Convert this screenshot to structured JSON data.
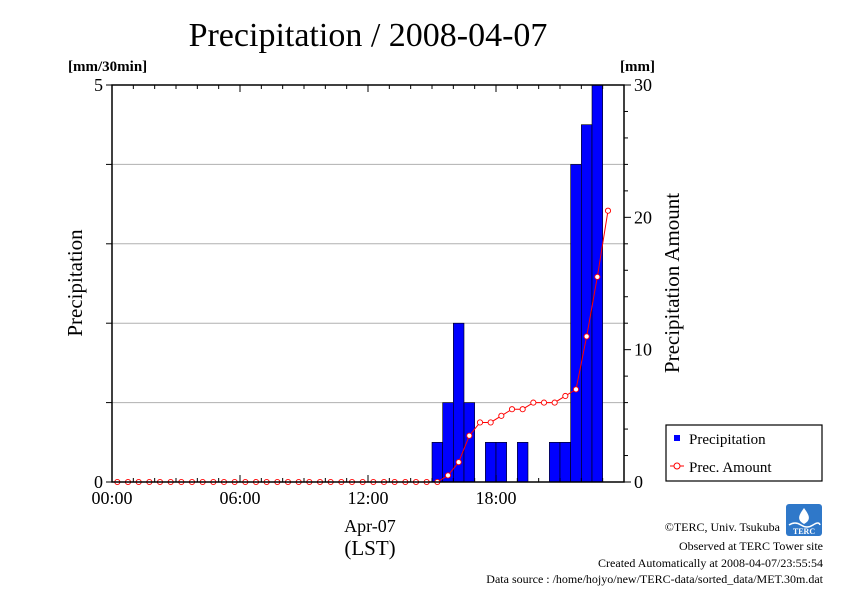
{
  "chart_data": {
    "type": "bar",
    "title": "Precipitation / 2008-04-07",
    "left_unit": "[mm/30min]",
    "right_unit": "[mm]",
    "ylabel": "Precipitation",
    "y2label": "Precipitation Amount",
    "xlabel_date": "Apr-07",
    "xlabel_tz": "(LST)",
    "ylim": [
      0,
      5
    ],
    "y2lim": [
      0,
      30
    ],
    "xlim_hours": [
      0,
      24
    ],
    "y_ticks": [
      "0",
      "5"
    ],
    "y2_ticks": [
      "0",
      "10",
      "20",
      "30"
    ],
    "x_ticks": [
      "00:00",
      "06:00",
      "12:00",
      "18:00"
    ],
    "grid": true,
    "legend_position": "bottom-right",
    "bar_color": "#0000ff",
    "line_color": "#ff0000",
    "x_hours": [
      0,
      0.5,
      1,
      1.5,
      2,
      2.5,
      3,
      3.5,
      4,
      4.5,
      5,
      5.5,
      6,
      6.5,
      7,
      7.5,
      8,
      8.5,
      9,
      9.5,
      10,
      10.5,
      11,
      11.5,
      12,
      12.5,
      13,
      13.5,
      14,
      14.5,
      15,
      15.5,
      16,
      16.5,
      17,
      17.5,
      18,
      18.5,
      19,
      19.5,
      20,
      20.5,
      21,
      21.5,
      22,
      22.5,
      23
    ],
    "series": [
      {
        "name": "Precipitation",
        "kind": "bar",
        "values": [
          0,
          0,
          0,
          0,
          0,
          0,
          0,
          0,
          0,
          0,
          0,
          0,
          0,
          0,
          0,
          0,
          0,
          0,
          0,
          0,
          0,
          0,
          0,
          0,
          0,
          0,
          0,
          0,
          0,
          0,
          0.5,
          1,
          2,
          1,
          0,
          0.5,
          0.5,
          0,
          0.5,
          0,
          0,
          0.5,
          0.5,
          4,
          4.5,
          5,
          0
        ]
      },
      {
        "name": "Prec. Amount",
        "kind": "line",
        "values": [
          0,
          0,
          0,
          0,
          0,
          0,
          0,
          0,
          0,
          0,
          0,
          0,
          0,
          0,
          0,
          0,
          0,
          0,
          0,
          0,
          0,
          0,
          0,
          0,
          0,
          0,
          0,
          0,
          0,
          0,
          0,
          0.5,
          1.5,
          3.5,
          4.5,
          4.5,
          5,
          5.5,
          5.5,
          6,
          6,
          6,
          6.5,
          7,
          11,
          15.5,
          20.5
        ]
      }
    ]
  },
  "footer": {
    "copyright": "©TERC, Univ. Tsukuba",
    "observed": "Observed at TERC Tower site",
    "created": "Created Automatically at 2008-04-07/23:55:54",
    "source": "Data source : /home/hojyo/new/TERC-data/sorted_data/MET.30m.dat",
    "logo_text": "TERC"
  }
}
